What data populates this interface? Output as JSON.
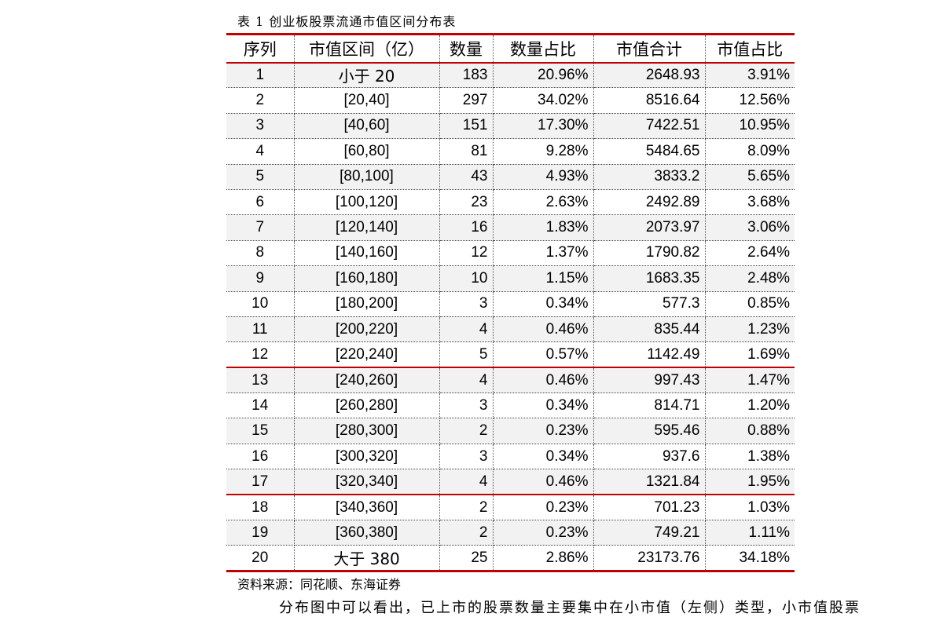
{
  "caption": "表 1 创业板股票流通市值区间分布表",
  "columns": [
    "序列",
    "市值区间（亿）",
    "数量",
    "数量占比",
    "市值合计",
    "市值占比"
  ],
  "rows": [
    [
      "1",
      "小于 20",
      "183",
      "20.96%",
      "2648.93",
      "3.91%"
    ],
    [
      "2",
      "[20,40]",
      "297",
      "34.02%",
      "8516.64",
      "12.56%"
    ],
    [
      "3",
      "[40,60]",
      "151",
      "17.30%",
      "7422.51",
      "10.95%"
    ],
    [
      "4",
      "[60,80]",
      "81",
      "9.28%",
      "5484.65",
      "8.09%"
    ],
    [
      "5",
      "[80,100]",
      "43",
      "4.93%",
      "3833.2",
      "5.65%"
    ],
    [
      "6",
      "[100,120]",
      "23",
      "2.63%",
      "2492.89",
      "3.68%"
    ],
    [
      "7",
      "[120,140]",
      "16",
      "1.83%",
      "2073.97",
      "3.06%"
    ],
    [
      "8",
      "[140,160]",
      "12",
      "1.37%",
      "1790.82",
      "2.64%"
    ],
    [
      "9",
      "[160,180]",
      "10",
      "1.15%",
      "1683.35",
      "2.48%"
    ],
    [
      "10",
      "[180,200]",
      "3",
      "0.34%",
      "577.3",
      "0.85%"
    ],
    [
      "11",
      "[200,220]",
      "4",
      "0.46%",
      "835.44",
      "1.23%"
    ],
    [
      "12",
      "[220,240]",
      "5",
      "0.57%",
      "1142.49",
      "1.69%"
    ],
    [
      "13",
      "[240,260]",
      "4",
      "0.46%",
      "997.43",
      "1.47%"
    ],
    [
      "14",
      "[260,280]",
      "3",
      "0.34%",
      "814.71",
      "1.20%"
    ],
    [
      "15",
      "[280,300]",
      "2",
      "0.23%",
      "595.46",
      "0.88%"
    ],
    [
      "16",
      "[300,320]",
      "3",
      "0.34%",
      "937.6",
      "1.38%"
    ],
    [
      "17",
      "[320,340]",
      "4",
      "0.46%",
      "1321.84",
      "1.95%"
    ],
    [
      "18",
      "[340,360]",
      "2",
      "0.23%",
      "701.23",
      "1.03%"
    ],
    [
      "19",
      "[360,380]",
      "2",
      "0.23%",
      "749.21",
      "1.11%"
    ],
    [
      "20",
      "大于 380",
      "25",
      "2.86%",
      "23173.76",
      "34.18%"
    ]
  ],
  "source": "资料来源：同花顺、东海证券",
  "tail_text": "分布图中可以看出，已上市的股票数量主要集中在小市值（左侧）类型，小市值股票"
}
